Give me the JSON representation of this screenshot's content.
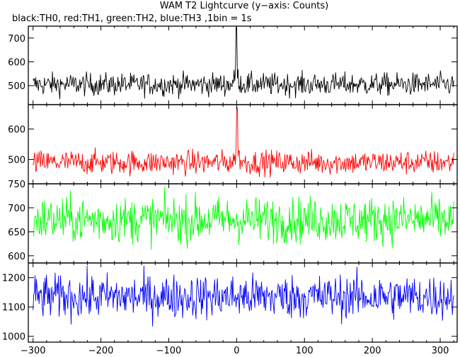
{
  "title": "WAM T2 Lightcurve (y−axis: Counts)",
  "subtitle": "black:TH0, red:TH1, green:TH2, blue:TH3 ,1bin = 1s",
  "chart_data": {
    "type": "line",
    "title": "WAM T2 Lightcurve (y−axis: Counts)",
    "subtitle": "black:TH0, red:TH1, green:TH2, blue:TH3 ,1bin = 1s",
    "xlabel": "",
    "ylabel": "",
    "xlim": [
      -307,
      325
    ],
    "x_ticks": [
      -300,
      -200,
      -100,
      0,
      100,
      200,
      300
    ],
    "x_tick_labels": [
      "−300",
      "−200",
      "−100",
      "0",
      "100",
      "200",
      "300"
    ],
    "panels": [
      {
        "series_name": "TH0",
        "color": "#000000",
        "ylim": [
          420,
          750
        ],
        "y_ticks": [
          500,
          600,
          700
        ],
        "baseline": 505,
        "noise": 24,
        "peak": {
          "x": 0,
          "y": 745
        },
        "n_points": 631
      },
      {
        "series_name": "TH1",
        "color": "#ff0000",
        "ylim": [
          420,
          680
        ],
        "y_ticks": [
          500,
          600
        ],
        "baseline": 490,
        "noise": 20,
        "peak": {
          "x": 1,
          "y": 670
        },
        "n_points": 631
      },
      {
        "series_name": "TH2",
        "color": "#00ff00",
        "ylim": [
          585,
          750
        ],
        "y_ticks": [
          600,
          650,
          700,
          750
        ],
        "baseline": 675,
        "noise": 24,
        "peak": null,
        "n_points": 631
      },
      {
        "series_name": "TH3",
        "color": "#0000ff",
        "ylim": [
          980,
          1250
        ],
        "y_ticks": [
          1000,
          1100,
          1200
        ],
        "baseline": 1135,
        "noise": 38,
        "peak": null,
        "n_points": 631
      }
    ]
  }
}
